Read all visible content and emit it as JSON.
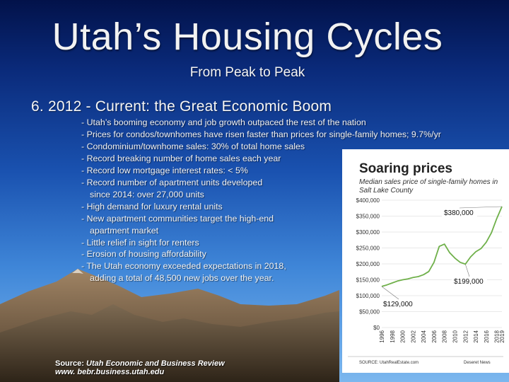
{
  "slide": {
    "title": "Utah’s Housing Cycles",
    "subtitle": "From Peak to Peak",
    "heading": "6. 2012 - Current: the Great Economic Boom",
    "bullets": [
      {
        "text": "- Utah’s booming economy and job growth outpaced the rest of the nation",
        "cont": ""
      },
      {
        "text": "- Prices for condos/townhomes have risen faster than prices for single-family homes; 9.7%/yr",
        "cont": ""
      },
      {
        "text": "- Condominium/townhome sales: 30% of total home sales",
        "cont": ""
      },
      {
        "text": "- Record breaking number of home sales each year",
        "cont": ""
      },
      {
        "text": "- Record low mortgage interest rates: < 5%",
        "cont": ""
      },
      {
        "text": "- Record number of apartment units developed",
        "cont": "since 2014: over 27,000 units"
      },
      {
        "text": "- High demand for luxury rental units",
        "cont": ""
      },
      {
        "text": "- New apartment communities target the high-end",
        "cont": "apartment market"
      },
      {
        "text": "- Little relief in sight for renters",
        "cont": ""
      },
      {
        "text": "- Erosion of housing affordability",
        "cont": ""
      },
      {
        "text": "- The Utah economy exceeded expectations in 2018,",
        "cont": "adding a total of 48,500 new jobs over the year."
      }
    ],
    "source": {
      "label": "Source: ",
      "publication": "Utah Economic and Business Review",
      "website": "www. bebr.business.utah.edu"
    }
  },
  "chart_data": {
    "type": "line",
    "title": "Soaring prices",
    "subtitle_lines": [
      "Median sales price of single-family homes in",
      "Salt Lake County"
    ],
    "xlabel": "",
    "ylabel": "",
    "ylim": [
      0,
      400000
    ],
    "yticks": [
      "$0",
      "$50,000",
      "$100,000",
      "$150,000",
      "$200,000",
      "$250,000",
      "$300,000",
      "$350,000",
      "$400,000"
    ],
    "xticks": [
      "1996",
      "1998",
      "2000",
      "2002",
      "2004",
      "2006",
      "2008",
      "2010",
      "2012",
      "2014",
      "2016",
      "2018",
      "2019"
    ],
    "x": [
      1996,
      1997,
      1998,
      1999,
      2000,
      2001,
      2002,
      2003,
      2004,
      2005,
      2006,
      2007,
      2008,
      2009,
      2010,
      2011,
      2012,
      2013,
      2014,
      2015,
      2016,
      2017,
      2018,
      2019
    ],
    "y": [
      129000,
      134000,
      140000,
      146000,
      150000,
      153000,
      157000,
      160000,
      166000,
      176000,
      205000,
      255000,
      262000,
      235000,
      218000,
      205000,
      199000,
      222000,
      238000,
      248000,
      268000,
      298000,
      342000,
      380000
    ],
    "annotations": [
      {
        "label": "$380,000",
        "year": 2019,
        "value": 380000
      },
      {
        "label": "$199,000",
        "year": 2012,
        "value": 199000
      },
      {
        "label": "$129,000",
        "year": 1996,
        "value": 129000
      }
    ],
    "footer_left": "SOURCE: UtahRealEstate.com",
    "footer_right": "Deseret News",
    "line_color": "#6fb04a",
    "grid": true
  }
}
